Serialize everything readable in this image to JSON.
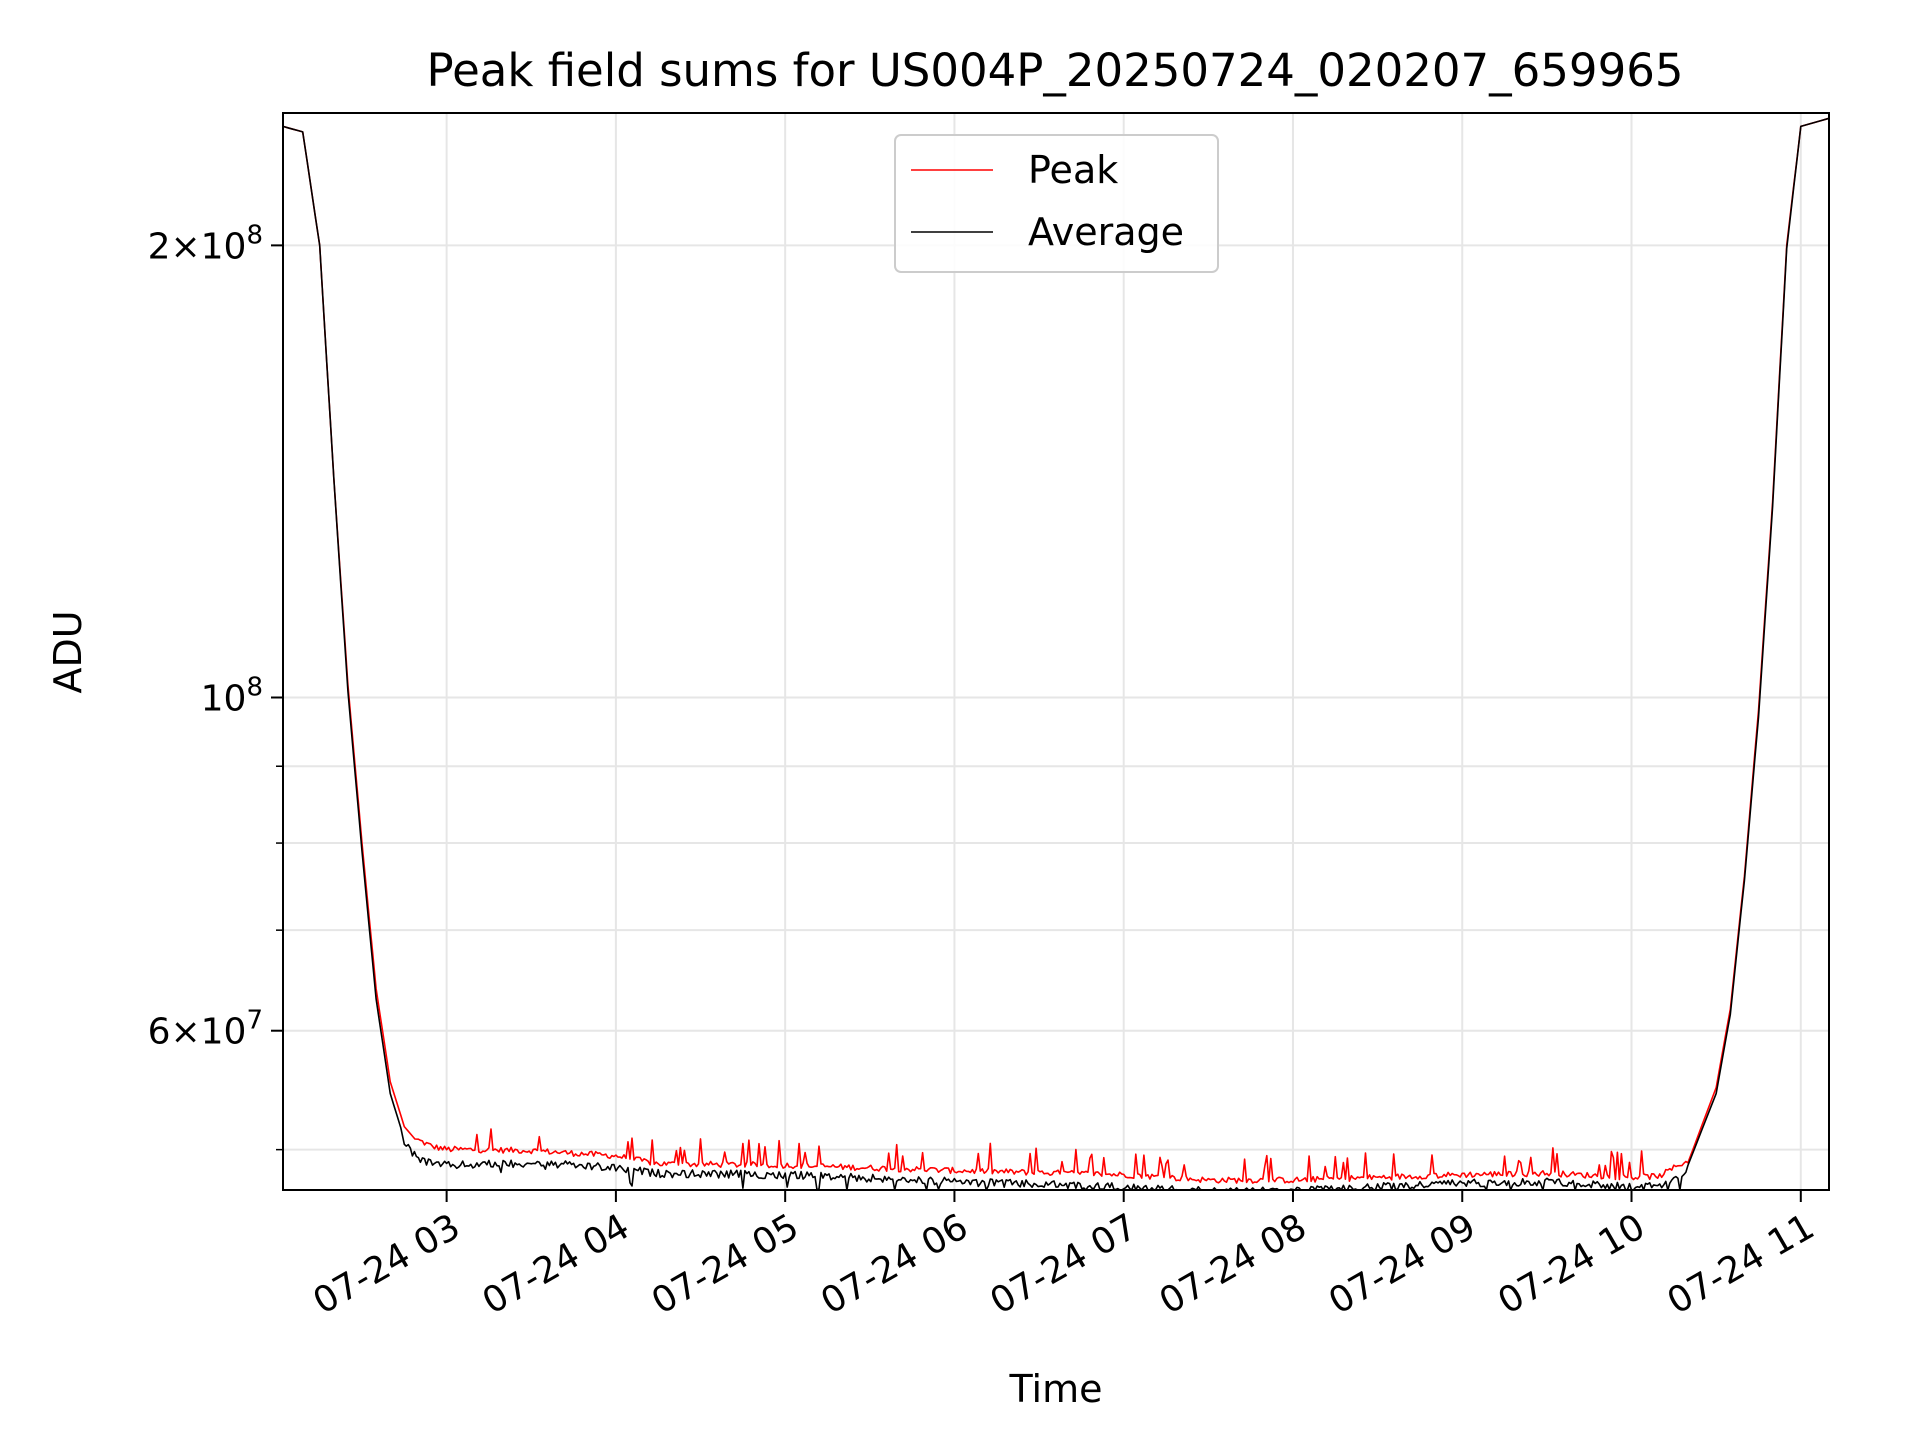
{
  "chart_data": {
    "type": "line",
    "title": "Peak field sums for US004P_20250724_020207_659965",
    "xlabel": "Time",
    "ylabel": "ADU",
    "x_axis": {
      "kind": "datetime",
      "range": [
        "2025-07-24T02:02",
        "2025-07-24T11:10"
      ],
      "ticks": [
        "07-24 03",
        "07-24 04",
        "07-24 05",
        "07-24 06",
        "07-24 07",
        "07-24 08",
        "07-24 09",
        "07-24 10",
        "07-24 11"
      ],
      "tick_times": [
        "2025-07-24T03:00",
        "2025-07-24T04:00",
        "2025-07-24T05:00",
        "2025-07-24T06:00",
        "2025-07-24T07:00",
        "2025-07-24T08:00",
        "2025-07-24T09:00",
        "2025-07-24T10:00",
        "2025-07-24T11:00"
      ]
    },
    "y_axis": {
      "scale": "log",
      "range": [
        47000000,
        245000000
      ],
      "major_ticks": [
        {
          "value": 60000000,
          "base": "6",
          "sep": "×",
          "exp": "10",
          "sup": "7"
        },
        {
          "value": 100000000,
          "base": "",
          "sep": "",
          "exp": "10",
          "sup": "8"
        },
        {
          "value": 200000000,
          "base": "2",
          "sep": "×",
          "exp": "10",
          "sup": "8"
        }
      ],
      "minor_ticks": [
        50000000,
        70000000,
        80000000,
        90000000
      ]
    },
    "grid": true,
    "legend": {
      "placement": "upper-center",
      "entries": [
        "Peak",
        "Average"
      ]
    },
    "series": [
      {
        "name": "Peak",
        "color": "#ff0000",
        "x": [
          "2025-07-24T02:02",
          "2025-07-24T02:09",
          "2025-07-24T02:15",
          "2025-07-24T02:20",
          "2025-07-24T02:25",
          "2025-07-24T02:30",
          "2025-07-24T02:35",
          "2025-07-24T02:40",
          "2025-07-24T02:45",
          "2025-07-24T02:50",
          "2025-07-24T02:55",
          "2025-07-24T03:00",
          "2025-07-24T03:30",
          "2025-07-24T04:00",
          "2025-07-24T04:15",
          "2025-07-24T05:00",
          "2025-07-24T06:00",
          "2025-07-24T07:00",
          "2025-07-24T07:30",
          "2025-07-24T08:00",
          "2025-07-24T08:30",
          "2025-07-24T09:00",
          "2025-07-24T09:30",
          "2025-07-24T10:00",
          "2025-07-24T10:10",
          "2025-07-24T10:20",
          "2025-07-24T10:30",
          "2025-07-24T10:35",
          "2025-07-24T10:40",
          "2025-07-24T10:45",
          "2025-07-24T10:50",
          "2025-07-24T10:55",
          "2025-07-24T11:00",
          "2025-07-24T11:10"
        ],
        "y": [
          240000000,
          238000000,
          200000000,
          140000000,
          102000000,
          80000000,
          64000000,
          55500000,
          51800000,
          50500000,
          50000000,
          49800000,
          49700000,
          49300000,
          48700000,
          48600000,
          48200000,
          47900000,
          47500000,
          47500000,
          47700000,
          47900000,
          48000000,
          47700000,
          47800000,
          49000000,
          55000000,
          62000000,
          76000000,
          98000000,
          135000000,
          200000000,
          240000000,
          243000000
        ]
      },
      {
        "name": "Average",
        "color": "#000000",
        "x": [
          "2025-07-24T02:02",
          "2025-07-24T02:09",
          "2025-07-24T02:15",
          "2025-07-24T02:20",
          "2025-07-24T02:25",
          "2025-07-24T02:30",
          "2025-07-24T02:35",
          "2025-07-24T02:40",
          "2025-07-24T02:45",
          "2025-07-24T02:50",
          "2025-07-24T02:55",
          "2025-07-24T03:00",
          "2025-07-24T03:30",
          "2025-07-24T04:00",
          "2025-07-24T04:15",
          "2025-07-24T05:00",
          "2025-07-24T06:00",
          "2025-07-24T07:00",
          "2025-07-24T07:30",
          "2025-07-24T08:00",
          "2025-07-24T08:30",
          "2025-07-24T09:00",
          "2025-07-24T09:30",
          "2025-07-24T10:00",
          "2025-07-24T10:10",
          "2025-07-24T10:20",
          "2025-07-24T10:30",
          "2025-07-24T10:35",
          "2025-07-24T10:40",
          "2025-07-24T10:45",
          "2025-07-24T10:50",
          "2025-07-24T10:55",
          "2025-07-24T11:00",
          "2025-07-24T11:10"
        ],
        "y": [
          240000000,
          238000000,
          200000000,
          140000000,
          101000000,
          79000000,
          63000000,
          54500000,
          50800000,
          49600000,
          49200000,
          49100000,
          49300000,
          48900000,
          48500000,
          48400000,
          47900000,
          47500000,
          47200000,
          47200000,
          47500000,
          47800000,
          47900000,
          47500000,
          47600000,
          48800000,
          54500000,
          61500000,
          75500000,
          97000000,
          134000000,
          199000000,
          240000000,
          243000000
        ]
      }
    ]
  }
}
